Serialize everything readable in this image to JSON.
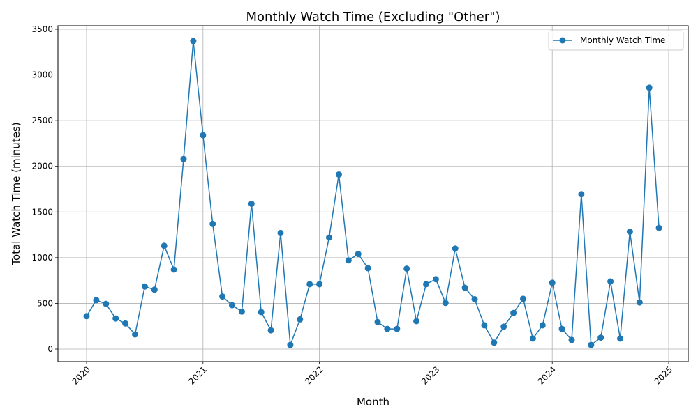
{
  "chart_data": {
    "type": "line",
    "title": "Monthly Watch Time (Excluding \"Other\")",
    "xlabel": "Month",
    "ylabel": "Total Watch Time (minutes)",
    "x_tick_labels": [
      "2020",
      "2021",
      "2022",
      "2023",
      "2024",
      "2025"
    ],
    "y_ticks": [
      0,
      500,
      1000,
      1500,
      2000,
      2500,
      3000,
      3500
    ],
    "grid": true,
    "legend_position": "top-right",
    "colors": {
      "series": "#1f77b4",
      "grid": "#b0b0b0"
    },
    "series": [
      {
        "name": "Monthly Watch Time",
        "x": [
          "2020-01",
          "2020-02",
          "2020-03",
          "2020-04",
          "2020-05",
          "2020-06",
          "2020-07",
          "2020-08",
          "2020-09",
          "2020-10",
          "2020-11",
          "2020-12",
          "2021-01",
          "2021-02",
          "2021-03",
          "2021-04",
          "2021-05",
          "2021-06",
          "2021-07",
          "2021-08",
          "2021-09",
          "2021-10",
          "2021-11",
          "2021-12",
          "2022-01",
          "2022-02",
          "2022-03",
          "2022-04",
          "2022-05",
          "2022-06",
          "2022-07",
          "2022-08",
          "2022-09",
          "2022-10",
          "2022-11",
          "2022-12",
          "2023-01",
          "2023-02",
          "2023-03",
          "2023-04",
          "2023-05",
          "2023-06",
          "2023-07",
          "2023-08",
          "2023-09",
          "2023-10",
          "2023-11",
          "2023-12",
          "2024-01",
          "2024-02",
          "2024-03",
          "2024-04",
          "2024-05",
          "2024-06",
          "2024-07",
          "2024-08",
          "2024-09",
          "2024-10",
          "2024-11",
          "2024-12"
        ],
        "values": [
          360,
          535,
          495,
          335,
          280,
          160,
          685,
          650,
          1130,
          870,
          2080,
          3370,
          2340,
          1370,
          575,
          480,
          410,
          1590,
          405,
          205,
          1270,
          45,
          325,
          710,
          710,
          1220,
          1910,
          970,
          1040,
          885,
          295,
          220,
          220,
          880,
          305,
          710,
          765,
          505,
          1100,
          670,
          545,
          260,
          70,
          245,
          395,
          550,
          115,
          260,
          725,
          220,
          100,
          1695,
          45,
          125,
          740,
          115,
          1285,
          510,
          2860,
          1325
        ]
      }
    ]
  }
}
